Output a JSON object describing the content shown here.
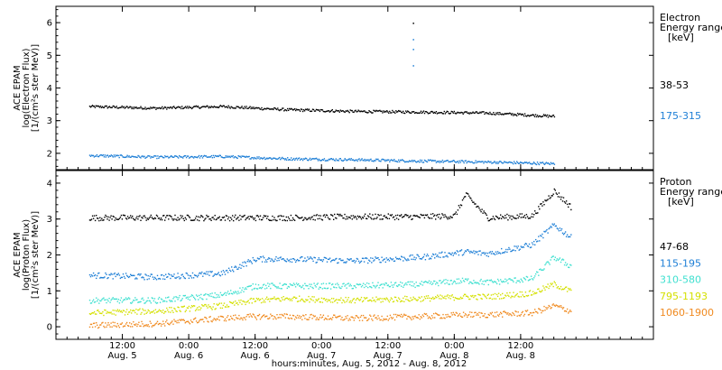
{
  "chart_data": [
    {
      "type": "scatter",
      "panel": "electron",
      "ylabel_lines": [
        "ACE EPAM",
        "log(Electron Flux)",
        "[1/(cm²s ster MeV)]"
      ],
      "legend_title": [
        "Electron",
        "Energy range",
        "[keV]"
      ],
      "ylim": [
        1.5,
        6.5
      ],
      "yticks": [
        2,
        3,
        4,
        5,
        6
      ],
      "grid": false,
      "legend_position": "right",
      "series": [
        {
          "name": "38-53",
          "color": "#000000",
          "x": [
            0,
            12,
            24,
            36,
            48,
            60,
            72,
            84
          ],
          "y": [
            3.45,
            3.4,
            3.45,
            3.35,
            3.3,
            3.28,
            3.25,
            3.15
          ]
        },
        {
          "name": "175-315",
          "color": "#1e7fd6",
          "x": [
            0,
            12,
            24,
            36,
            48,
            60,
            72,
            84
          ],
          "y": [
            1.95,
            1.9,
            1.92,
            1.85,
            1.82,
            1.78,
            1.75,
            1.7
          ]
        }
      ],
      "spikes": [
        {
          "x": 58.5,
          "y": [
            6.0,
            5.5,
            5.2,
            4.7
          ]
        }
      ]
    },
    {
      "type": "scatter",
      "panel": "proton",
      "ylabel_lines": [
        "ACE EPAM",
        "log(Proton Flux)",
        "[1/(cm²s ster MeV)]"
      ],
      "legend_title": [
        "Proton",
        "Energy range",
        "[keV]"
      ],
      "ylim": [
        -0.35,
        4.35
      ],
      "yticks": [
        0,
        1,
        2,
        3,
        4
      ],
      "grid": false,
      "legend_position": "right",
      "series": [
        {
          "name": "47-68",
          "color": "#000000",
          "x": [
            0,
            12,
            24,
            36,
            48,
            60,
            66,
            68,
            72,
            80,
            84,
            87
          ],
          "y": [
            3.05,
            3.05,
            3.05,
            3.05,
            3.08,
            3.08,
            3.1,
            3.7,
            3.05,
            3.1,
            3.8,
            3.35
          ]
        },
        {
          "name": "115-195",
          "color": "#1e7fd6",
          "x": [
            0,
            12,
            24,
            30,
            36,
            48,
            60,
            68,
            72,
            80,
            84,
            87
          ],
          "y": [
            1.45,
            1.4,
            1.5,
            1.9,
            1.9,
            1.85,
            1.95,
            2.1,
            2.05,
            2.3,
            2.85,
            2.5
          ]
        },
        {
          "name": "310-580",
          "color": "#40e0d0",
          "x": [
            0,
            12,
            24,
            30,
            36,
            48,
            60,
            68,
            72,
            80,
            84,
            87
          ],
          "y": [
            0.75,
            0.75,
            0.9,
            1.15,
            1.15,
            1.15,
            1.2,
            1.3,
            1.25,
            1.35,
            1.95,
            1.7
          ]
        },
        {
          "name": "795-1193",
          "color": "#d4e000",
          "x": [
            0,
            12,
            24,
            30,
            36,
            48,
            60,
            68,
            72,
            80,
            84,
            87
          ],
          "y": [
            0.4,
            0.45,
            0.6,
            0.75,
            0.8,
            0.75,
            0.8,
            0.85,
            0.85,
            0.95,
            1.2,
            1.0
          ]
        },
        {
          "name": "1060-1900",
          "color": "#f08a20",
          "x": [
            0,
            12,
            24,
            30,
            36,
            48,
            60,
            68,
            72,
            80,
            84,
            87
          ],
          "y": [
            0.05,
            0.1,
            0.25,
            0.3,
            0.3,
            0.25,
            0.3,
            0.35,
            0.35,
            0.4,
            0.6,
            0.45
          ]
        }
      ]
    }
  ],
  "x_axis": {
    "xlim": [
      -6,
      102
    ],
    "ticks": [
      {
        "x": 6,
        "time": "12:00",
        "date": "Aug. 5"
      },
      {
        "x": 18,
        "time": "0:00",
        "date": "Aug. 6"
      },
      {
        "x": 30,
        "time": "12:00",
        "date": "Aug. 6"
      },
      {
        "x": 42,
        "time": "0:00",
        "date": "Aug. 7"
      },
      {
        "x": 54,
        "time": "12:00",
        "date": "Aug. 7"
      },
      {
        "x": 66,
        "time": "0:00",
        "date": "Aug. 8"
      },
      {
        "x": 78,
        "time": "12:00",
        "date": "Aug. 8"
      }
    ],
    "xlabel": "hours:minutes, Aug.  5, 2012 - Aug.  8, 2012"
  }
}
